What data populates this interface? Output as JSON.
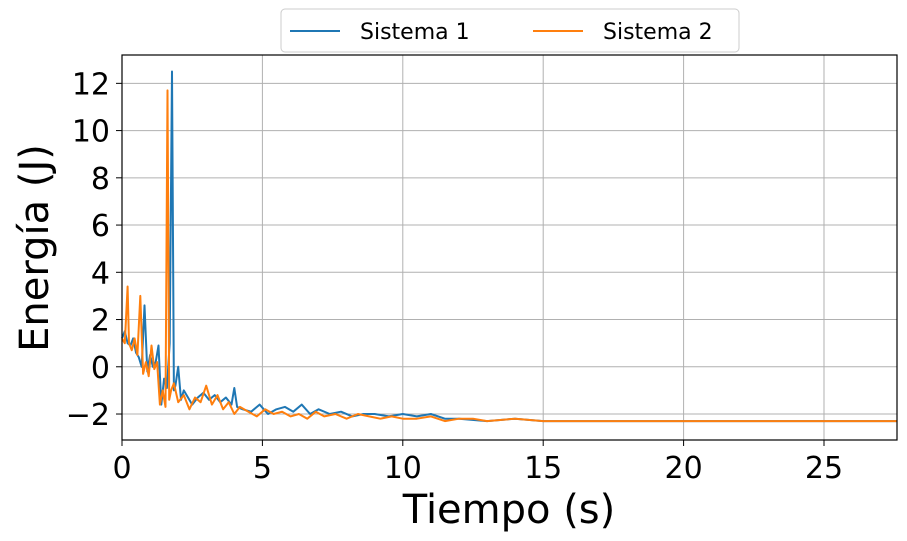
{
  "chart_data": {
    "type": "line",
    "xlabel": "Tiempo (s)",
    "ylabel": "Energía (J)",
    "xlim": [
      0,
      27.6
    ],
    "ylim": [
      -3.1,
      13.2
    ],
    "xticks": [
      0,
      5,
      10,
      15,
      20,
      25
    ],
    "xtick_labels": [
      "0",
      "5",
      "10",
      "15",
      "20",
      "25"
    ],
    "yticks": [
      -2,
      0,
      2,
      4,
      6,
      8,
      10,
      12
    ],
    "ytick_labels": [
      "−2",
      "0",
      "2",
      "4",
      "6",
      "8",
      "10",
      "12"
    ],
    "grid": true,
    "legend_position": "top-center, outside",
    "series": [
      {
        "name": "Sistema 1",
        "color": "#1f77b4",
        "x": [
          0,
          0.1,
          0.2,
          0.3,
          0.4,
          0.5,
          0.6,
          0.7,
          0.8,
          0.9,
          1.0,
          1.1,
          1.2,
          1.3,
          1.4,
          1.5,
          1.6,
          1.7,
          1.78,
          1.85,
          1.9,
          2.0,
          2.1,
          2.2,
          2.3,
          2.5,
          2.7,
          2.9,
          3.1,
          3.3,
          3.5,
          3.7,
          3.9,
          4.0,
          4.1,
          4.3,
          4.6,
          4.9,
          5.2,
          5.5,
          5.8,
          6.1,
          6.4,
          6.7,
          7.0,
          7.4,
          7.8,
          8.2,
          8.6,
          9.0,
          9.5,
          10.0,
          10.5,
          11.0,
          11.5,
          12.0,
          13.0,
          14.0,
          15.0,
          16.0,
          18.0,
          20.0,
          22.0,
          24.0,
          26.0,
          27.6
        ],
        "y": [
          1.2,
          1.5,
          1.0,
          0.9,
          1.2,
          0.6,
          0.4,
          0.0,
          2.6,
          -0.2,
          0.5,
          0.0,
          0.2,
          0.9,
          -1.6,
          -0.5,
          -0.9,
          1.0,
          12.5,
          -1.0,
          -0.8,
          0.0,
          -1.4,
          -1.0,
          -1.2,
          -1.6,
          -1.3,
          -1.1,
          -1.4,
          -1.2,
          -1.5,
          -1.3,
          -1.6,
          -0.9,
          -1.7,
          -1.8,
          -1.9,
          -1.6,
          -2.0,
          -1.8,
          -1.7,
          -1.9,
          -1.6,
          -2.0,
          -1.8,
          -2.0,
          -1.9,
          -2.1,
          -2.0,
          -2.0,
          -2.1,
          -2.0,
          -2.1,
          -2.0,
          -2.2,
          -2.2,
          -2.3,
          -2.2,
          -2.3,
          -2.3,
          -2.3,
          -2.3,
          -2.3,
          -2.3,
          -2.3,
          -2.3
        ]
      },
      {
        "name": "Sistema 2",
        "color": "#ff7f0e",
        "x": [
          0,
          0.1,
          0.2,
          0.25,
          0.35,
          0.45,
          0.55,
          0.65,
          0.75,
          0.85,
          0.95,
          1.05,
          1.15,
          1.25,
          1.35,
          1.45,
          1.55,
          1.62,
          1.68,
          1.75,
          1.85,
          2.0,
          2.2,
          2.4,
          2.6,
          2.8,
          3.0,
          3.2,
          3.4,
          3.6,
          3.8,
          4.0,
          4.2,
          4.5,
          4.8,
          5.1,
          5.4,
          5.7,
          6.0,
          6.3,
          6.6,
          6.9,
          7.2,
          7.6,
          8.0,
          8.4,
          8.8,
          9.2,
          9.6,
          10.0,
          10.5,
          11.0,
          11.5,
          12.0,
          12.5,
          13.0,
          14.0,
          15.0,
          16.0,
          17.0,
          19.0,
          21.0,
          23.0,
          25.0,
          27.6
        ],
        "y": [
          1.2,
          1.0,
          3.4,
          1.0,
          0.7,
          1.2,
          0.5,
          3.0,
          -0.3,
          0.2,
          -0.4,
          0.9,
          -0.1,
          0.2,
          -1.6,
          -1.0,
          -1.7,
          11.7,
          -1.4,
          -1.0,
          -0.7,
          -1.5,
          -1.2,
          -1.8,
          -1.3,
          -1.5,
          -0.8,
          -1.6,
          -1.2,
          -1.8,
          -1.5,
          -2.0,
          -1.7,
          -1.9,
          -2.1,
          -1.8,
          -2.0,
          -1.9,
          -2.1,
          -2.0,
          -2.2,
          -1.9,
          -2.1,
          -2.0,
          -2.2,
          -2.0,
          -2.1,
          -2.2,
          -2.1,
          -2.2,
          -2.2,
          -2.1,
          -2.3,
          -2.2,
          -2.2,
          -2.3,
          -2.2,
          -2.3,
          -2.3,
          -2.3,
          -2.3,
          -2.3,
          -2.3,
          -2.3,
          -2.3
        ]
      }
    ]
  }
}
